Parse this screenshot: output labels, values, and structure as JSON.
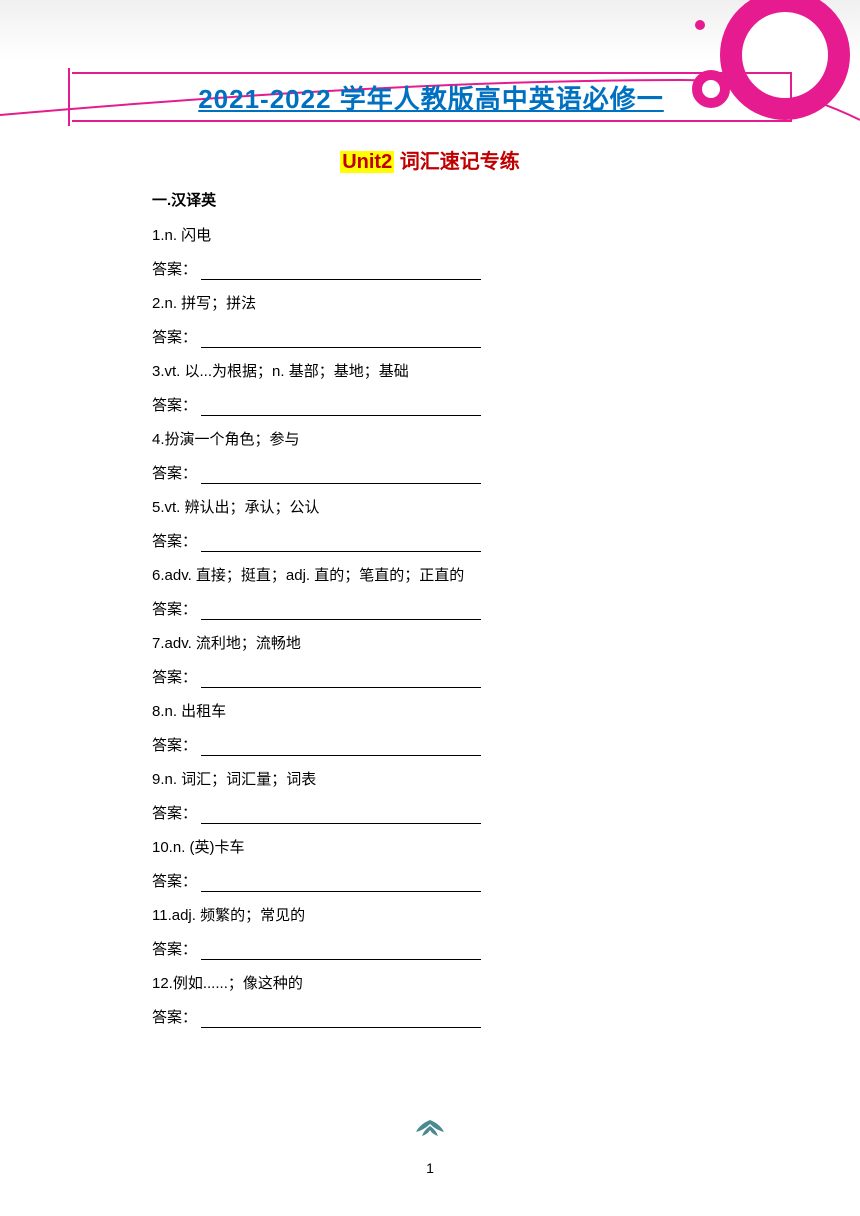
{
  "header": {
    "main_title": "2021-2022 学年人教版高中英语必修一",
    "subtitle_unit": "Unit2",
    "subtitle_text": " 词汇速记专练"
  },
  "section": {
    "title": "一.汉译英"
  },
  "questions": [
    {
      "num": "1",
      "prompt": ".n. 闪电"
    },
    {
      "num": "2",
      "prompt": ".n. 拼写；拼法"
    },
    {
      "num": "3",
      "prompt": ".vt. 以...为根据；n. 基部；基地；基础"
    },
    {
      "num": "4",
      "prompt": ".扮演一个角色；参与"
    },
    {
      "num": "5",
      "prompt": ".vt. 辨认出；承认；公认"
    },
    {
      "num": "6",
      "prompt": ".adv. 直接；挺直；adj. 直的；笔直的；正直的"
    },
    {
      "num": "7",
      "prompt": ".adv. 流利地；流畅地"
    },
    {
      "num": "8",
      "prompt": ".n. 出租车"
    },
    {
      "num": "9",
      "prompt": ".n. 词汇；词汇量；词表"
    },
    {
      "num": "10",
      "prompt": ".n. (英)卡车"
    },
    {
      "num": "11",
      "prompt": ".adj. 频繁的；常见的"
    },
    {
      "num": "12",
      "prompt": ".例如......；像这种的"
    }
  ],
  "answer_label": "答案：",
  "page_number": "1",
  "colors": {
    "accent_pink": "#e61b8f",
    "title_blue": "#0070c0",
    "subtitle_red": "#c00000",
    "highlight_yellow": "#ffff00",
    "leaf_teal": "#4a8a8f"
  }
}
